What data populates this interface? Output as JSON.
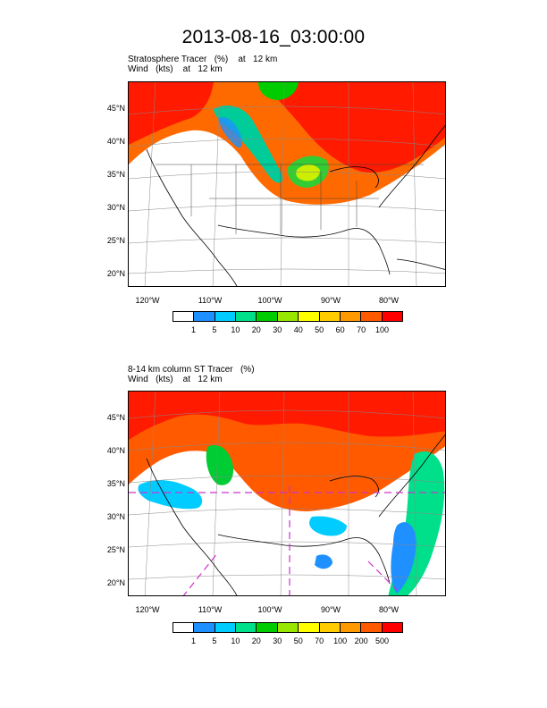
{
  "title": "2013-08-16_03:00:00",
  "panels": [
    {
      "id": "top",
      "label_line1": "Stratosphere Tracer   (%)    at   12 km",
      "label_line2": "Wind   (kts)    at   12 km",
      "lat_labels": [
        "45°N",
        "40°N",
        "35°N",
        "30°N",
        "25°N",
        "20°N"
      ],
      "lon_labels": [
        "120°W",
        "110°W",
        "100°W",
        "90°W",
        "80°W"
      ],
      "colorbar": {
        "colors": [
          "#ffffff",
          "#1e90ff",
          "#00ccff",
          "#00e08a",
          "#00cc00",
          "#99e600",
          "#ffff00",
          "#ffcc00",
          "#ff9900",
          "#ff5a00",
          "#ff0000"
        ],
        "labels": [
          "1",
          "5",
          "10",
          "20",
          "30",
          "40",
          "50",
          "60",
          "70",
          "100"
        ]
      }
    },
    {
      "id": "bottom",
      "label_line1": "8-14 km column ST Tracer   (%)",
      "label_line2": "Wind   (kts)    at   12 km",
      "lat_labels": [
        "45°N",
        "40°N",
        "35°N",
        "30°N",
        "25°N",
        "20°N"
      ],
      "lon_labels": [
        "120°W",
        "110°W",
        "100°W",
        "90°W",
        "80°W"
      ],
      "colorbar": {
        "colors": [
          "#ffffff",
          "#1e90ff",
          "#00ccff",
          "#00e08a",
          "#00cc00",
          "#99e600",
          "#ffff00",
          "#ffcc00",
          "#ff9900",
          "#ff5a00",
          "#ff0000"
        ],
        "labels": [
          "1",
          "5",
          "10",
          "20",
          "30",
          "50",
          "70",
          "100",
          "200",
          "500"
        ]
      }
    }
  ]
}
